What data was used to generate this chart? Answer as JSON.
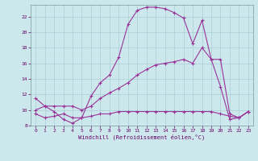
{
  "title": "",
  "xlabel": "Windchill (Refroidissement éolien,°C)",
  "ylabel": "",
  "xlim": [
    -0.5,
    23.5
  ],
  "ylim": [
    8,
    23.5
  ],
  "yticks": [
    8,
    10,
    12,
    14,
    16,
    18,
    20,
    22
  ],
  "xticks": [
    0,
    1,
    2,
    3,
    4,
    5,
    6,
    7,
    8,
    9,
    10,
    11,
    12,
    13,
    14,
    15,
    16,
    17,
    18,
    19,
    20,
    21,
    22,
    23
  ],
  "background_color": "#cce8ed",
  "grid_color": "#aacdd4",
  "line_color": "#993399",
  "line1_x": [
    0,
    1,
    2,
    3,
    4,
    5,
    6,
    7,
    8,
    9,
    10,
    11,
    12,
    13,
    14,
    15,
    16,
    17,
    18,
    19,
    20,
    21,
    22,
    23
  ],
  "line1_y": [
    11.5,
    10.5,
    9.8,
    8.8,
    8.3,
    9.0,
    11.8,
    13.5,
    14.5,
    16.8,
    21.0,
    22.8,
    23.2,
    23.2,
    23.0,
    22.5,
    21.8,
    18.5,
    21.5,
    16.5,
    13.0,
    8.8,
    9.0,
    9.8
  ],
  "line2_x": [
    0,
    1,
    2,
    3,
    4,
    5,
    6,
    7,
    8,
    9,
    10,
    11,
    12,
    13,
    14,
    15,
    16,
    17,
    18,
    19,
    20,
    21,
    22,
    23
  ],
  "line2_y": [
    9.5,
    9.0,
    9.2,
    9.5,
    9.0,
    9.0,
    9.2,
    9.5,
    9.5,
    9.8,
    9.8,
    9.8,
    9.8,
    9.8,
    9.8,
    9.8,
    9.8,
    9.8,
    9.8,
    9.8,
    9.5,
    9.2,
    9.0,
    9.8
  ],
  "line3_x": [
    0,
    1,
    2,
    3,
    4,
    5,
    6,
    7,
    8,
    9,
    10,
    11,
    12,
    13,
    14,
    15,
    16,
    17,
    18,
    19,
    20,
    21,
    22,
    23
  ],
  "line3_y": [
    10.0,
    10.5,
    10.5,
    10.5,
    10.5,
    10.0,
    10.5,
    11.5,
    12.2,
    12.8,
    13.5,
    14.5,
    15.2,
    15.8,
    16.0,
    16.2,
    16.5,
    16.0,
    18.0,
    16.5,
    16.5,
    9.5,
    9.0,
    9.8
  ]
}
